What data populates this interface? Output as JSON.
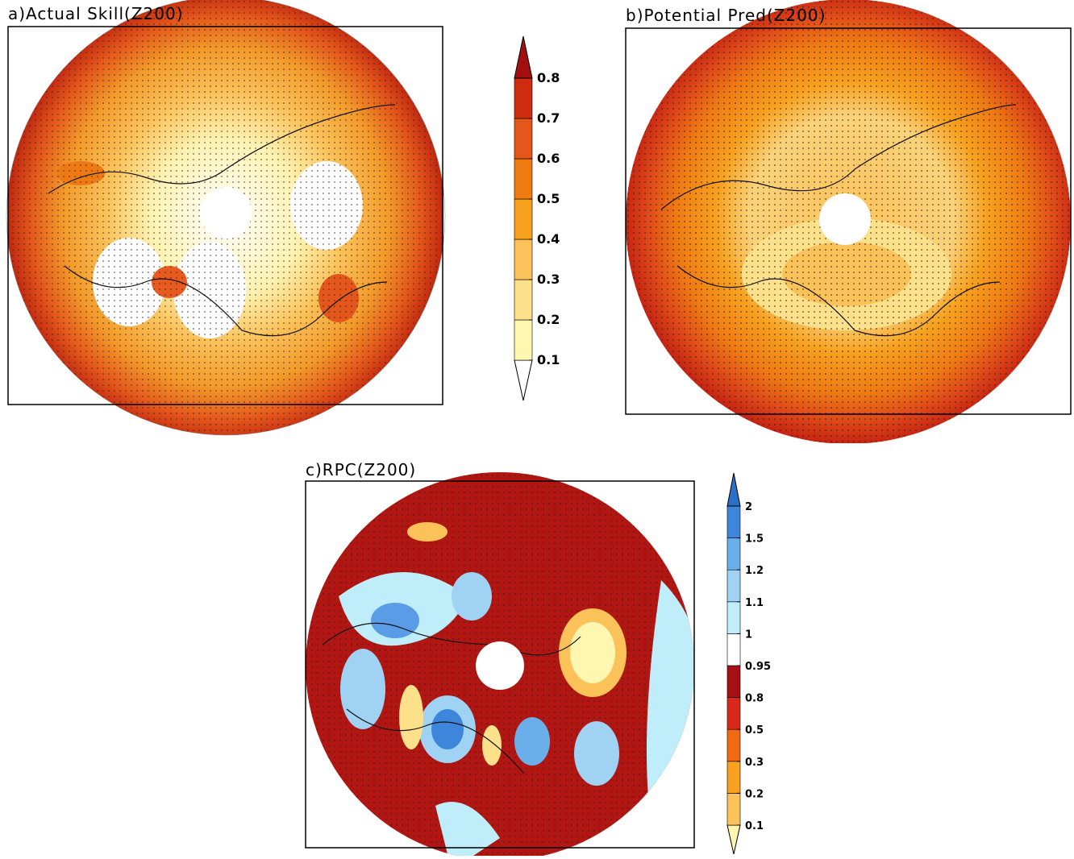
{
  "panels": [
    {
      "title": "a)Actual Skill(Z200)"
    },
    {
      "title": "b)Potential Pred(Z200)"
    },
    {
      "title": "c)RPC(Z200)"
    }
  ],
  "colorbars": [
    {
      "ticks": [
        0.1,
        0.2,
        0.3,
        0.4,
        0.5,
        0.6,
        0.7,
        0.8
      ],
      "colors": [
        "#ffffff",
        "#fff6b0",
        "#fde08a",
        "#fcc25a",
        "#f8a11e",
        "#ef7a12",
        "#e4561a",
        "#cf2c10",
        "#a20f0e"
      ]
    },
    {
      "ticks": [
        0.1,
        0.2,
        0.3,
        0.5,
        0.8,
        0.95,
        1,
        1.1,
        1.2,
        1.5,
        2
      ],
      "colors": [
        "#fff7b0",
        "#fcc25a",
        "#f8a11e",
        "#ef6a12",
        "#d8281a",
        "#a50f15",
        "#ffffff",
        "#bfeefa",
        "#a0d2f4",
        "#6aaeea",
        "#3d86dc",
        "#2a6fc8"
      ]
    }
  ]
}
